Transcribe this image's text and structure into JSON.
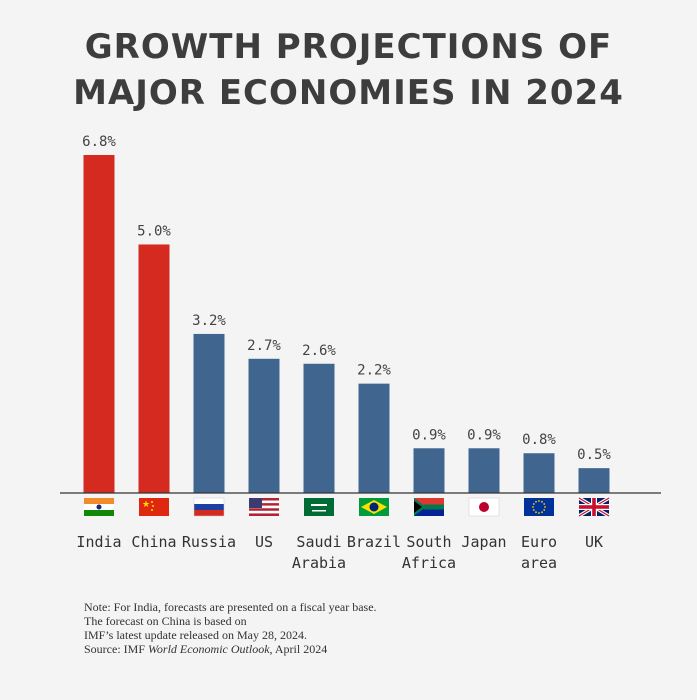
{
  "title_line1": "GROWTH PROJECTIONS OF",
  "title_line2": "MAJOR ECONOMIES IN 2024",
  "colors": {
    "highlight": "#d42a1f",
    "default": "#40668f",
    "axis": "#333333"
  },
  "chart_data": {
    "type": "bar",
    "title": "GROWTH PROJECTIONS OF MAJOR ECONOMIES IN 2024",
    "categories": [
      "India",
      "China",
      "Russia",
      "US",
      "Saudi Arabia",
      "Brazil",
      "South Africa",
      "Japan",
      "Euro area",
      "UK"
    ],
    "category_lines": [
      [
        "India"
      ],
      [
        "China"
      ],
      [
        "Russia"
      ],
      [
        "US"
      ],
      [
        "Saudi",
        "Arabia"
      ],
      [
        "Brazil"
      ],
      [
        "South",
        "Africa"
      ],
      [
        "Japan"
      ],
      [
        "Euro",
        "area"
      ],
      [
        "UK"
      ]
    ],
    "values": [
      6.8,
      5.0,
      3.2,
      2.7,
      2.6,
      2.2,
      0.9,
      0.9,
      0.8,
      0.5
    ],
    "value_labels": [
      "6.8%",
      "5.0%",
      "3.2%",
      "2.7%",
      "2.6%",
      "2.2%",
      "0.9%",
      "0.9%",
      "0.8%",
      "0.5%"
    ],
    "highlighted": [
      true,
      true,
      false,
      false,
      false,
      false,
      false,
      false,
      false,
      false
    ],
    "flags": [
      "india-flag-icon",
      "china-flag-icon",
      "russia-flag-icon",
      "us-flag-icon",
      "saudi-arabia-flag-icon",
      "brazil-flag-icon",
      "south-africa-flag-icon",
      "japan-flag-icon",
      "eu-flag-icon",
      "uk-flag-icon"
    ],
    "ylim": [
      0,
      6.8
    ],
    "grid": false,
    "xlabel": "",
    "ylabel": ""
  },
  "note": {
    "line1": "Note: For India, forecasts are presented on a fiscal year base.",
    "line2": "The forecast on China is based on",
    "line3": "IMF’s latest update released on May 28, 2024.",
    "source_prefix": "Source: IMF ",
    "source_title": "World Economic Outlook",
    "source_suffix": ", April 2024"
  }
}
